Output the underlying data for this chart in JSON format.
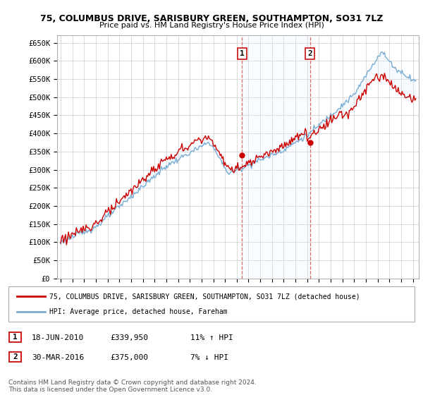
{
  "title": "75, COLUMBUS DRIVE, SARISBURY GREEN, SOUTHAMPTON, SO31 7LZ",
  "subtitle": "Price paid vs. HM Land Registry's House Price Index (HPI)",
  "ylabel_ticks": [
    "£0",
    "£50K",
    "£100K",
    "£150K",
    "£200K",
    "£250K",
    "£300K",
    "£350K",
    "£400K",
    "£450K",
    "£500K",
    "£550K",
    "£600K",
    "£650K"
  ],
  "ytick_values": [
    0,
    50000,
    100000,
    150000,
    200000,
    250000,
    300000,
    350000,
    400000,
    450000,
    500000,
    550000,
    600000,
    650000
  ],
  "ylim": [
    0,
    670000
  ],
  "xlim_start": 1994.7,
  "xlim_end": 2025.5,
  "marker1_x": 2010.46,
  "marker1_y": 339950,
  "marker2_x": 2016.24,
  "marker2_y": 375000,
  "red_line_color": "#cc0000",
  "blue_line_color": "#7aadd4",
  "shaded_color": "#ddeeff",
  "vline_color": "#dd6666",
  "legend_entry1": "75, COLUMBUS DRIVE, SARISBURY GREEN, SOUTHAMPTON, SO31 7LZ (detached house)",
  "legend_entry2": "HPI: Average price, detached house, Fareham",
  "footer": "Contains HM Land Registry data © Crown copyright and database right 2024.\nThis data is licensed under the Open Government Licence v3.0.",
  "table_row1_num": "1",
  "table_row1_date": "18-JUN-2010",
  "table_row1_price": "£339,950",
  "table_row1_pct": "11% ↑ HPI",
  "table_row2_num": "2",
  "table_row2_date": "30-MAR-2016",
  "table_row2_price": "£375,000",
  "table_row2_pct": "7% ↓ HPI",
  "background_color": "#ffffff",
  "grid_color": "#cccccc"
}
